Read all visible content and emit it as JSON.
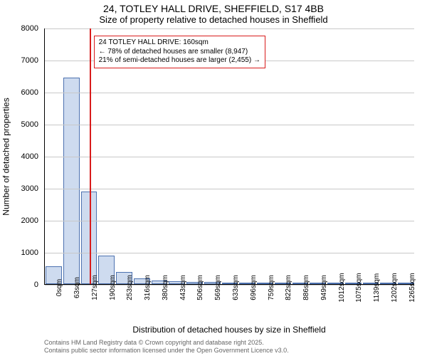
{
  "title_main": "24, TOTLEY HALL DRIVE, SHEFFIELD, S17 4BB",
  "title_sub": "Size of property relative to detached houses in Sheffield",
  "title_fontsize": 14,
  "subtitle_fontsize": 13,
  "xlabel": "Distribution of detached houses by size in Sheffield",
  "ylabel": "Number of detached properties",
  "label_fontsize": 12,
  "ylim": [
    0,
    8000
  ],
  "yticks": [
    0,
    1000,
    2000,
    3000,
    4000,
    5000,
    6000,
    7000,
    8000
  ],
  "xlim": [
    0,
    21
  ],
  "xtick_labels": [
    "0sqm",
    "63sqm",
    "127sqm",
    "190sqm",
    "253sqm",
    "316sqm",
    "380sqm",
    "443sqm",
    "506sqm",
    "569sqm",
    "633sqm",
    "696sqm",
    "759sqm",
    "822sqm",
    "886sqm",
    "949sqm",
    "1012sqm",
    "1075sqm",
    "1139sqm",
    "1202sqm",
    "1265sqm"
  ],
  "xtick_fontsize": 10,
  "bar_fill": "#cedbef",
  "bar_border": "#4d72b0",
  "grid_color": "#c8c8c8",
  "background": "#ffffff",
  "bar_values": [
    550,
    6450,
    2900,
    900,
    380,
    180,
    120,
    90,
    65,
    60,
    45,
    40,
    32,
    28,
    24,
    20,
    16,
    14,
    12,
    10,
    8
  ],
  "bar_width_rel": 0.92,
  "marker_value_sqm": 160,
  "sqm_per_bin": 63.25,
  "marker_color": "#d81b1b",
  "annotation": {
    "line1": "24 TOTLEY HALL DRIVE: 160sqm",
    "line2": "← 78% of detached houses are smaller (8,947)",
    "line3": "21% of semi-detached houses are larger (2,455) →",
    "border_color": "#d81b1b",
    "bg": "#ffffff",
    "fontsize": 10
  },
  "attribution": {
    "line1": "Contains HM Land Registry data © Crown copyright and database right 2025.",
    "line2": "Contains public sector information licensed under the Open Government Licence v3.0.",
    "color": "#666666",
    "fontsize": 9
  }
}
